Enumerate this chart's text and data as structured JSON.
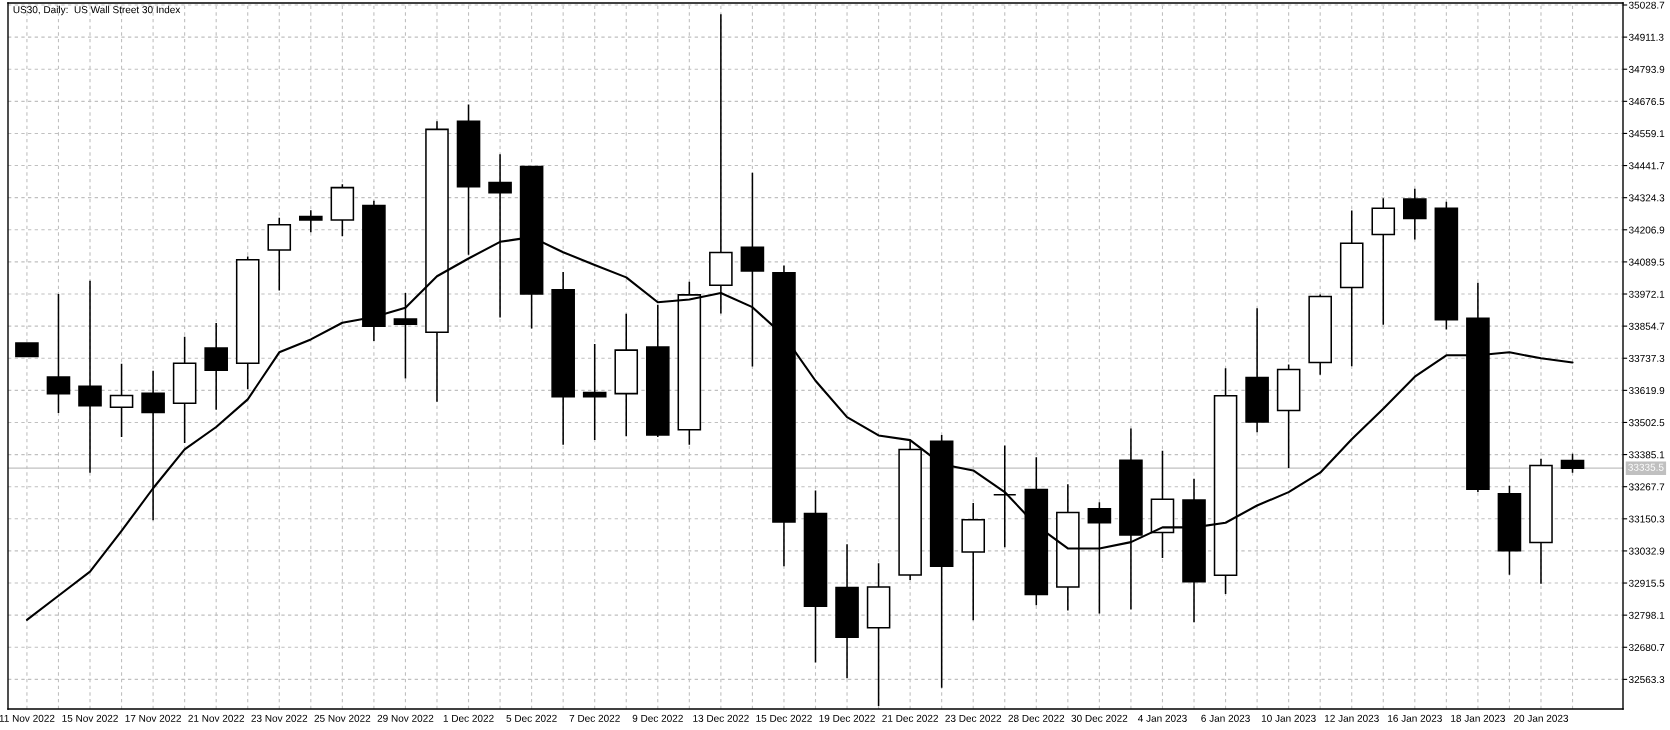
{
  "chart_data": {
    "type": "candlestick",
    "title": "US30, Daily:  US Wall Street 30 Index",
    "categories": [
      "11 Nov 2022",
      null,
      "15 Nov 2022",
      null,
      "17 Nov 2022",
      null,
      "21 Nov 2022",
      null,
      "23 Nov 2022",
      null,
      "25 Nov 2022",
      null,
      "29 Nov 2022",
      null,
      "1 Dec 2022",
      null,
      "5 Dec 2022",
      null,
      "7 Dec 2022",
      null,
      "9 Dec 2022",
      null,
      "13 Dec 2022",
      null,
      "15 Dec 2022",
      null,
      "19 Dec 2022",
      null,
      "21 Dec 2022",
      null,
      "23 Dec 2022",
      null,
      "28 Dec 2022",
      null,
      "30 Dec 2022",
      null,
      "4 Jan 2023",
      null,
      "6 Jan 2023",
      null,
      "10 Jan 2023",
      null,
      "12 Jan 2023",
      null,
      "16 Jan 2023",
      null,
      "18 Jan 2023",
      null,
      "20 Jan 2023",
      null
    ],
    "ohlc": [
      [
        33793,
        33793,
        33744,
        33744
      ],
      [
        33669,
        33972,
        33537,
        33608
      ],
      [
        33635,
        34021,
        33319,
        33564
      ],
      [
        33558,
        33717,
        33449,
        33601
      ],
      [
        33609,
        33692,
        33145,
        33539
      ],
      [
        33573,
        33816,
        33427,
        33719
      ],
      [
        33775,
        33866,
        33549,
        33693
      ],
      [
        33719,
        34109,
        33624,
        34097
      ],
      [
        34133,
        34251,
        33985,
        34225
      ],
      [
        34255,
        34278,
        34198,
        34243
      ],
      [
        34243,
        34373,
        34183,
        34361
      ],
      [
        34296,
        34313,
        33800,
        33854
      ],
      [
        33881,
        33976,
        33663,
        33862
      ],
      [
        33832,
        34604,
        33578,
        34574
      ],
      [
        34604,
        34665,
        34116,
        34364
      ],
      [
        34380,
        34483,
        33886,
        34342
      ],
      [
        34438,
        34438,
        33846,
        33972
      ],
      [
        33988,
        34053,
        33421,
        33597
      ],
      [
        33612,
        33789,
        33438,
        33597
      ],
      [
        33608,
        33900,
        33452,
        33767
      ],
      [
        33778,
        33933,
        33449,
        33457
      ],
      [
        33476,
        34017,
        33421,
        33969
      ],
      [
        34004,
        34995,
        33901,
        34124
      ],
      [
        34143,
        34415,
        33707,
        34056
      ],
      [
        34050,
        34076,
        32977,
        33139
      ],
      [
        33170,
        33254,
        32625,
        32831
      ],
      [
        32899,
        33057,
        32567,
        32717
      ],
      [
        32752,
        32988,
        32466,
        32901
      ],
      [
        32945,
        33440,
        32927,
        33404
      ],
      [
        33434,
        33457,
        32533,
        32977
      ],
      [
        33029,
        33208,
        32779,
        33147
      ],
      [
        33238,
        33418,
        33046,
        33238
      ],
      [
        33257,
        33375,
        32834,
        32874
      ],
      [
        32901,
        33277,
        32815,
        33173
      ],
      [
        33187,
        33211,
        32804,
        33136
      ],
      [
        33364,
        33480,
        32819,
        33091
      ],
      [
        33100,
        33399,
        33007,
        33222
      ],
      [
        33219,
        33297,
        32772,
        32920
      ],
      [
        32944,
        33701,
        32875,
        33600
      ],
      [
        33667,
        33920,
        33467,
        33504
      ],
      [
        33546,
        33714,
        33336,
        33696
      ],
      [
        33722,
        33970,
        33677,
        33963
      ],
      [
        33996,
        34277,
        33708,
        34158
      ],
      [
        34190,
        34322,
        33860,
        34286
      ],
      [
        34319,
        34357,
        34171,
        34248
      ],
      [
        34286,
        34309,
        33842,
        33878
      ],
      [
        33883,
        34013,
        33248,
        33258
      ],
      [
        33242,
        33271,
        32946,
        33034
      ],
      [
        33064,
        33370,
        32913,
        33345
      ],
      [
        33363,
        33388,
        33319,
        33335.5
      ]
    ],
    "colors": [
      "#000000",
      "#000000",
      "#000000",
      "#ffffff",
      "#000000",
      "#ffffff",
      "#000000",
      "#ffffff",
      "#ffffff",
      "#000000",
      "#ffffff",
      "#000000",
      "#000000",
      "#ffffff",
      "#000000",
      "#000000",
      "#000000",
      "#000000",
      "#000000",
      "#ffffff",
      "#000000",
      "#ffffff",
      "#ffffff",
      "#000000",
      "#000000",
      "#000000",
      "#000000",
      "#ffffff",
      "#ffffff",
      "#000000",
      "#ffffff",
      "#000000",
      "#000000",
      "#ffffff",
      "#000000",
      "#000000",
      "#ffffff",
      "#000000",
      "#ffffff",
      "#000000",
      "#ffffff",
      "#ffffff",
      "#ffffff",
      "#ffffff",
      "#000000",
      "#000000",
      "#000000",
      "#000000",
      "#ffffff",
      "#000000"
    ],
    "series": [
      {
        "type": "line",
        "color": "#000000",
        "values": [
          32781,
          32869,
          32957,
          33106,
          33262,
          33404,
          33486,
          33587,
          33759,
          33806,
          33867,
          33888,
          33922,
          34037,
          34102,
          34163,
          34180,
          34125,
          34078,
          34033,
          33942,
          33952,
          33976,
          33924,
          33819,
          33655,
          33522,
          33455,
          33438,
          33350,
          33327,
          33248,
          33126,
          33042,
          33042,
          33065,
          33119,
          33119,
          33136,
          33199,
          33248,
          33319,
          33441,
          33553,
          33670,
          33748,
          33748,
          33759,
          33737,
          33722
        ]
      }
    ],
    "ylim": [
      32455,
      35036
    ],
    "yticks": [
      32563.3,
      32680.7,
      32798.1,
      32915.5,
      33032.9,
      33150.3,
      33267.7,
      33385.1,
      33502.5,
      33619.9,
      33737.3,
      33854.7,
      33972.1,
      34089.5,
      34206.9,
      34324.3,
      34441.7,
      34559.1,
      34676.5,
      34793.9,
      34911.3,
      35028.7
    ],
    "grid": true,
    "ref_lines": [
      {
        "axis": "y",
        "value": 33335.5,
        "label": "33335.5",
        "color": "#c0c0c0"
      }
    ]
  }
}
